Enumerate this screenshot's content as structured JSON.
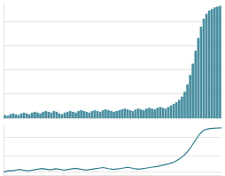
{
  "chart_data": [
    {
      "type": "bar",
      "values": [
        4,
        3,
        5,
        6,
        5,
        4,
        6,
        7,
        6,
        5,
        7,
        8,
        7,
        6,
        8,
        9,
        8,
        7,
        9,
        8,
        6,
        5,
        7,
        8,
        9,
        8,
        7,
        9,
        10,
        9,
        8,
        7,
        9,
        10,
        9,
        8,
        10,
        11,
        10,
        9,
        8,
        9,
        10,
        11,
        12,
        11,
        10,
        9,
        11,
        12,
        11,
        10,
        12,
        13,
        12,
        11,
        13,
        14,
        13,
        12,
        14,
        16,
        18,
        20,
        23,
        27,
        33,
        42,
        54,
        68,
        84,
        100,
        114,
        124,
        130,
        134,
        136,
        138,
        139,
        140
      ],
      "color": "#4a8fa0",
      "ylim": [
        0,
        145
      ],
      "yticks": [
        30,
        60,
        90,
        120
      ],
      "grid": true,
      "tick_labels": false
    },
    {
      "type": "line",
      "values": [
        1.0,
        1.06,
        1.12,
        1.1,
        1.14,
        1.18,
        1.22,
        1.16,
        1.12,
        1.1,
        1.14,
        1.18,
        1.22,
        1.26,
        1.3,
        1.26,
        1.22,
        1.18,
        1.24,
        1.28,
        1.24,
        1.2,
        1.16,
        1.2,
        1.24,
        1.28,
        1.32,
        1.28,
        1.24,
        1.2,
        1.16,
        1.2,
        1.24,
        1.28,
        1.32,
        1.36,
        1.4,
        1.36,
        1.3,
        1.26,
        1.22,
        1.26,
        1.3,
        1.34,
        1.38,
        1.42,
        1.38,
        1.32,
        1.28,
        1.24,
        1.28,
        1.32,
        1.36,
        1.4,
        1.44,
        1.48,
        1.52,
        1.58,
        1.64,
        1.7,
        1.76,
        1.84,
        1.94,
        2.08,
        2.24,
        2.44,
        2.68,
        2.98,
        3.34,
        3.72,
        4.1,
        4.46,
        4.74,
        4.9,
        4.98,
        5.02,
        5.04,
        5.06,
        5.07,
        5.08
      ],
      "color": "#2e7d8e",
      "ylim": [
        0.7,
        5.4
      ],
      "yticks": [
        1,
        2.5,
        4.2
      ],
      "grid": true,
      "tick_labels": false
    }
  ]
}
